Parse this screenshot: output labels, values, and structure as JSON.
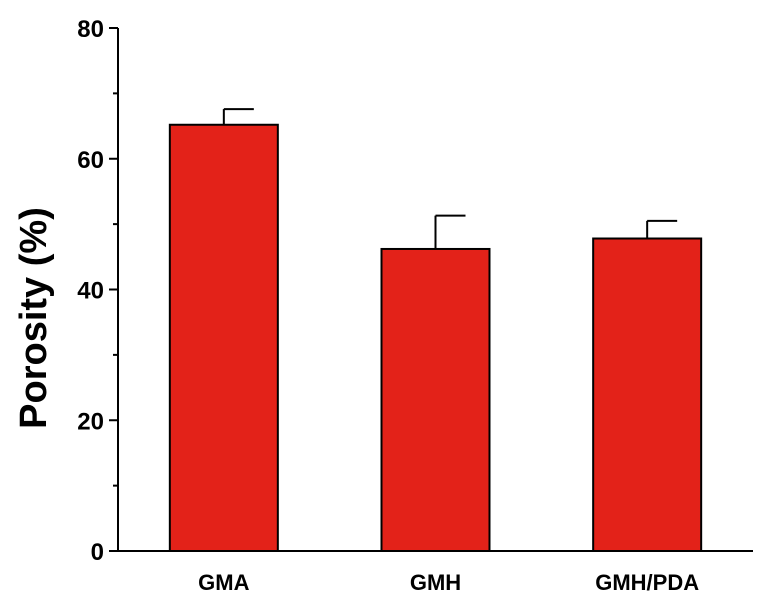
{
  "chart_data": {
    "type": "bar",
    "categories": [
      "GMA",
      "GMH",
      "GMH/PDA"
    ],
    "values": [
      65.2,
      46.2,
      47.8
    ],
    "errors": [
      2.4,
      5.1,
      2.7
    ],
    "ylabel": "Porosity (%)",
    "xlabel": "",
    "title": "",
    "ylim": [
      0,
      80
    ],
    "yticks": [
      0,
      20,
      40,
      60,
      80
    ],
    "grid": false,
    "bar_color": "#e32219",
    "edge_color": "#000000"
  }
}
